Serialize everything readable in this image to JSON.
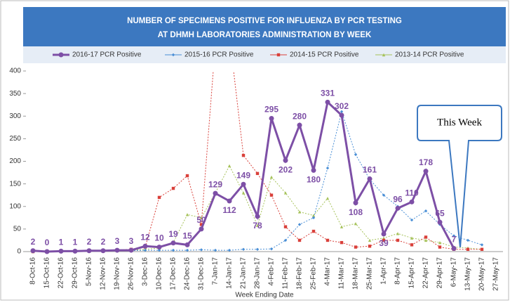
{
  "chart_data": {
    "type": "line",
    "title": [
      "NUMBER OF SPECIMENS POSITIVE FOR INFLUENZA BY PCR TESTING",
      "AT DHMH LABORATORIES ADMINISTRATION BY WEEK"
    ],
    "x_label": "Week Ending Date",
    "annotation": "This Week",
    "categories": [
      "8-Oct-16",
      "15-Oct-16",
      "22-Oct-16",
      "29-Oct-16",
      "5-Nov-16",
      "12-Nov-16",
      "19-Nov-16",
      "26-Nov-16",
      "3-Dec-16",
      "10-Dec-16",
      "17-Dec-16",
      "24-Dec-16",
      "31-Dec-16",
      "7-Jan-17",
      "14-Jan-17",
      "21-Jan-17",
      "28-Jan-17",
      "4-Feb-17",
      "11-Feb-17",
      "18-Feb-17",
      "25-Feb-17",
      "4-Mar-17",
      "11-Mar-17",
      "18-Mar-17",
      "25-Mar-17",
      "1-Apr-17",
      "8-Apr-17",
      "15-Apr-17",
      "22-Apr-17",
      "29-Apr-17",
      "6-May-17",
      "13-May-17",
      "20-May-17",
      "27-May-17"
    ],
    "ylim": [
      0,
      400
    ],
    "yticks": [
      0,
      50,
      100,
      150,
      200,
      250,
      300,
      350,
      400
    ],
    "grid": false,
    "legend": "top",
    "series": [
      {
        "name": "2016-17 PCR Positive",
        "color": "#7d4fa6",
        "marker": "circle",
        "labels": true,
        "values": [
          2,
          0,
          1,
          1,
          2,
          2,
          3,
          3,
          12,
          10,
          19,
          15,
          50,
          129,
          112,
          149,
          78,
          295,
          202,
          280,
          180,
          331,
          302,
          108,
          161,
          39,
          96,
          110,
          178,
          65,
          7,
          null,
          null,
          null
        ]
      },
      {
        "name": "2015-16 PCR Positive",
        "color": "#4a8fd6",
        "marker": "diamond",
        "values": [
          2,
          1,
          1,
          2,
          2,
          2,
          2,
          2,
          3,
          3,
          3,
          3,
          4,
          3,
          3,
          5,
          5,
          6,
          25,
          60,
          75,
          185,
          310,
          215,
          160,
          125,
          100,
          70,
          90,
          60,
          35,
          25,
          15,
          null
        ]
      },
      {
        "name": "2014-15 PCR Positive",
        "color": "#d9403a",
        "marker": "square",
        "values": [
          0,
          0,
          1,
          1,
          1,
          2,
          3,
          5,
          10,
          120,
          140,
          168,
          60,
          460,
          480,
          213,
          173,
          125,
          55,
          25,
          45,
          25,
          20,
          10,
          12,
          25,
          25,
          15,
          32,
          10,
          5,
          5,
          5,
          null
        ]
      },
      {
        "name": "2013-14 PCR Positive",
        "color": "#a6c25a",
        "marker": "triangle",
        "values": [
          0,
          0,
          0,
          0,
          1,
          1,
          2,
          3,
          5,
          8,
          20,
          82,
          75,
          130,
          190,
          130,
          58,
          165,
          130,
          88,
          80,
          118,
          55,
          62,
          25,
          30,
          40,
          30,
          25,
          20,
          10,
          8,
          5,
          null
        ]
      }
    ]
  }
}
